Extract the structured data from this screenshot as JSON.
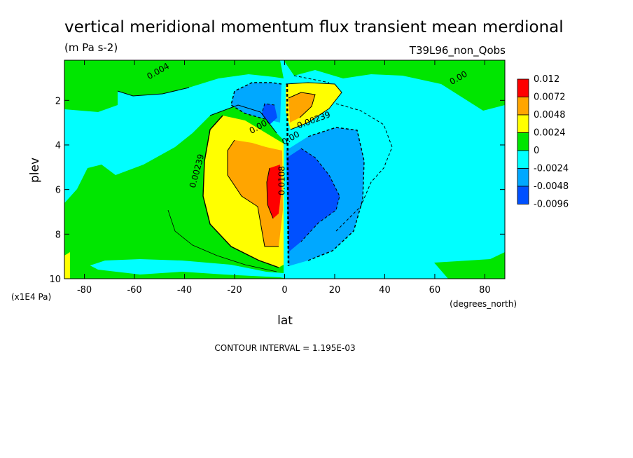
{
  "chart_data": {
    "type": "heatmap",
    "title": "vertical meridional momentum flux transient mean merdional",
    "units": "(m Pa s-2)",
    "run_label": "T39L96_non_Qobs",
    "xlabel": "lat",
    "x_units": "(degrees_north)",
    "ylabel": "plev",
    "y_units": "(x1E4 Pa)",
    "xlim": [
      -88,
      88
    ],
    "ylim": [
      10,
      0.2
    ],
    "x_ticks": [
      -80,
      -60,
      -40,
      -20,
      0,
      20,
      40,
      60,
      80
    ],
    "y_ticks": [
      2,
      4,
      6,
      8,
      10
    ],
    "footer": "CONTOUR INTERVAL = 1.195E-03",
    "legend": {
      "placement": "right",
      "levels": [
        "0.012",
        "0.0072",
        "0.0048",
        "0.0024",
        "0",
        "-0.0024",
        "-0.0048",
        "-0.0096"
      ],
      "colors": [
        "#ff0000",
        "#ffa500",
        "#ffff00",
        "#00e600",
        "#00ffff",
        "#00a8ff",
        "#0050ff"
      ]
    },
    "contour_labels": [
      {
        "text": "0.004",
        "lat": -50,
        "plev": 0.8
      },
      {
        "text": "0.00",
        "lat": 70,
        "plev": 1.1
      },
      {
        "text": "0.00",
        "lat": -10,
        "plev": 3.3
      },
      {
        "text": "0.00239",
        "lat": -34,
        "plev": 5.2
      },
      {
        "text": "0.00239",
        "lat": 12,
        "plev": 3.0
      },
      {
        "text": "0.00",
        "lat": 3,
        "plev": 3.8
      },
      {
        "text": "0.0108",
        "lat": 0,
        "plev": 5.6
      }
    ]
  }
}
